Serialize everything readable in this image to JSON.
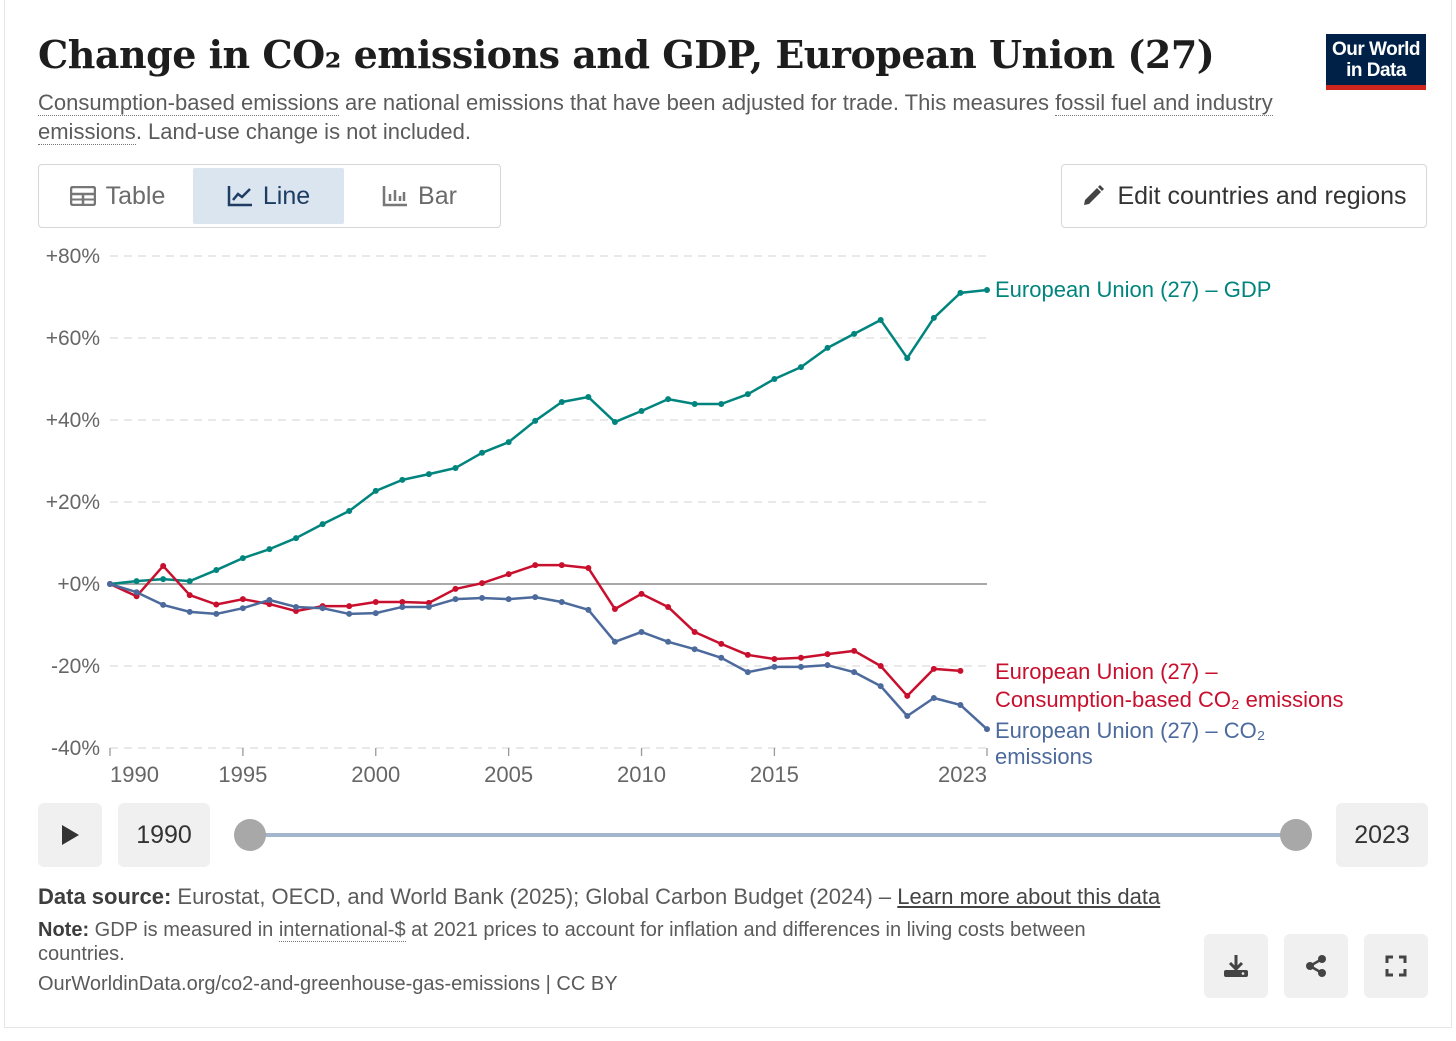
{
  "header": {
    "title": "Change in CO₂ emissions and GDP, European Union (27)",
    "subtitle_link1": "Consumption-based emissions",
    "subtitle_text1": " are national emissions that have been adjusted for trade. This measures ",
    "subtitle_link2": "fossil fuel and industry emissions",
    "subtitle_text2": ". Land-use change is not included.",
    "logo": "Our World in Data"
  },
  "tabs": [
    {
      "label": "Table",
      "icon": "table-icon"
    },
    {
      "label": "Line",
      "icon": "line-chart-icon",
      "active": true
    },
    {
      "label": "Bar",
      "icon": "bar-chart-icon"
    }
  ],
  "edit_button": "Edit countries and regions",
  "timeline": {
    "start": "1990",
    "end": "2023"
  },
  "footer": {
    "source_label": "Data source:",
    "source_text": " Eurostat, OECD, and World Bank (2025); Global Carbon Budget (2024) – ",
    "source_link": "Learn more about this data",
    "note_label": "Note:",
    "note_text1": " GDP is measured in ",
    "note_link": "international-$",
    "note_text2": " at 2021 prices to account for inflation and differences in living costs between countries.",
    "url": "OurWorldinData.org/co2-and-greenhouse-gas-emissions | CC BY"
  },
  "chart_data": {
    "type": "line",
    "title": "Change in CO₂ emissions and GDP, European Union (27)",
    "ylim": [
      -40,
      80
    ],
    "yticks": [
      "+80%",
      "+60%",
      "+40%",
      "+20%",
      "+0%",
      "-20%",
      "-40%"
    ],
    "ytick_values": [
      80,
      60,
      40,
      20,
      0,
      -20,
      -40
    ],
    "xticks": [
      "1990",
      "1995",
      "2000",
      "2005",
      "2010",
      "2015",
      "2023"
    ],
    "xtick_values": [
      1990,
      1995,
      2000,
      2005,
      2010,
      2015,
      2023
    ],
    "x": [
      1990,
      1991,
      1992,
      1993,
      1994,
      1995,
      1996,
      1997,
      1998,
      1999,
      2000,
      2001,
      2002,
      2003,
      2004,
      2005,
      2006,
      2007,
      2008,
      2009,
      2010,
      2011,
      2012,
      2013,
      2014,
      2015,
      2016,
      2017,
      2018,
      2019,
      2020,
      2021,
      2022,
      2023
    ],
    "series": [
      {
        "name": "European Union (27) – GDP",
        "label_lines": [
          "European Union (27) – GDP"
        ],
        "color": "#00847e",
        "values": [
          0,
          0.7,
          1.2,
          0.7,
          3.4,
          6.3,
          8.5,
          11.2,
          14.6,
          17.8,
          22.7,
          25.4,
          26.8,
          28.3,
          32,
          34.6,
          39.8,
          44.4,
          45.6,
          39.5,
          42.2,
          45.1,
          43.9,
          43.9,
          46.3,
          50,
          52.9,
          57.6,
          61,
          64.4,
          55.1,
          64.9,
          71,
          71.7
        ]
      },
      {
        "name": "European Union (27) – Consumption-based CO₂ emissions",
        "label_lines": [
          "European Union (27) –",
          "Consumption-based CO₂ emissions"
        ],
        "color": "#c8102e",
        "values": [
          0,
          -3,
          4.4,
          -2.7,
          -5,
          -3.7,
          -4.9,
          -6.6,
          -5.4,
          -5.4,
          -4.4,
          -4.4,
          -4.6,
          -1.2,
          0.2,
          2.4,
          4.6,
          4.6,
          3.9,
          -6.1,
          -2.4,
          -5.6,
          -11.7,
          -14.6,
          -17.3,
          -18.3,
          -18,
          -17.1,
          -16.3,
          -20,
          -27.3,
          -20.7,
          -21.2,
          null
        ]
      },
      {
        "name": "European Union (27) – CO₂ emissions",
        "label_lines": [
          "European Union (27) – CO₂",
          "emissions"
        ],
        "color": "#4c6a9c",
        "values": [
          0,
          -2,
          -5.1,
          -6.8,
          -7.3,
          -5.9,
          -3.9,
          -5.6,
          -5.9,
          -7.3,
          -7.1,
          -5.6,
          -5.6,
          -3.7,
          -3.4,
          -3.7,
          -3.2,
          -4.4,
          -6.3,
          -14.1,
          -11.7,
          -14.1,
          -15.9,
          -18,
          -21.5,
          -20.2,
          -20.2,
          -19.8,
          -21.5,
          -24.9,
          -32.2,
          -27.8,
          -29.5,
          -35.4
        ]
      }
    ]
  }
}
